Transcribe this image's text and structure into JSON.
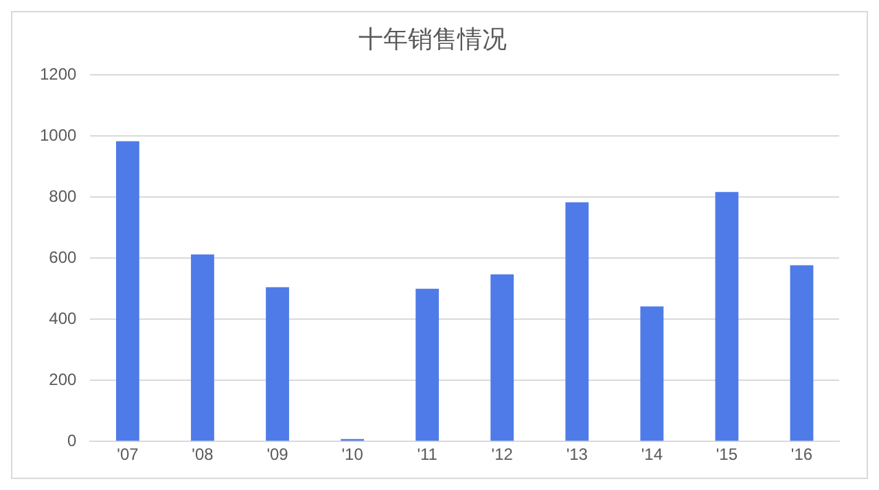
{
  "chart_data": {
    "type": "bar",
    "title": "十年销售情况",
    "categories": [
      "'07",
      "'08",
      "'09",
      "'10",
      "'11",
      "'12",
      "'13",
      "'14",
      "'15",
      "'16"
    ],
    "values": [
      983,
      612,
      505,
      8,
      500,
      547,
      783,
      442,
      817,
      577
    ],
    "color": "#4f7be8",
    "ylim": [
      0,
      1200
    ],
    "yticks": [
      0,
      200,
      400,
      600,
      800,
      1000,
      1200
    ],
    "grid": "y",
    "legend": false
  }
}
